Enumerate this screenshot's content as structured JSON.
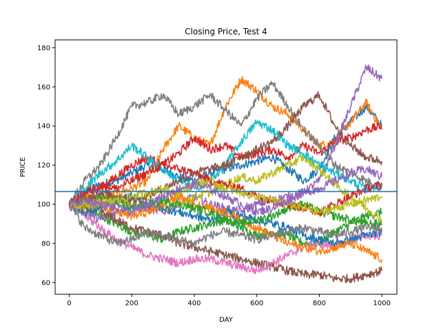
{
  "chart_data": {
    "type": "line",
    "title": "Closing Price, Test 4",
    "xlabel": "DAY",
    "ylabel": "PRICE",
    "xlim": [
      -45,
      1048
    ],
    "ylim": [
      54,
      184
    ],
    "xticks": [
      0,
      200,
      400,
      600,
      800,
      1000
    ],
    "yticks": [
      60,
      80,
      100,
      120,
      140,
      160,
      180
    ],
    "hline": {
      "y": 106.5,
      "color": "#1f77b4"
    },
    "grid": false,
    "legend": "none",
    "series": [
      {
        "color": "#1f77b4",
        "x": [
          0,
          50,
          100,
          150,
          200,
          250,
          300,
          350,
          400,
          450,
          500,
          550,
          600,
          650,
          700,
          750,
          800,
          850,
          900,
          950,
          1000
        ],
        "y": [
          100,
          106,
          110,
          112,
          116,
          120,
          118,
          114,
          112,
          116,
          118,
          120,
          122,
          124,
          118,
          112,
          118,
          134,
          142,
          150,
          140
        ]
      },
      {
        "color": "#ff7f0e",
        "x": [
          0,
          50,
          100,
          150,
          200,
          250,
          300,
          350,
          400,
          450,
          500,
          550,
          600,
          650,
          700,
          750,
          800,
          850,
          900,
          950,
          1000
        ],
        "y": [
          100,
          104,
          102,
          106,
          108,
          112,
          128,
          140,
          134,
          130,
          150,
          164,
          158,
          150,
          146,
          138,
          130,
          132,
          142,
          152,
          138
        ]
      },
      {
        "color": "#2ca02c",
        "x": [
          0,
          50,
          100,
          150,
          200,
          250,
          300,
          350,
          400,
          450,
          500,
          550,
          600,
          650,
          700,
          750,
          800,
          850,
          900,
          950,
          1000
        ],
        "y": [
          100,
          98,
          94,
          90,
          86,
          84,
          82,
          86,
          88,
          90,
          92,
          88,
          84,
          86,
          84,
          80,
          80,
          86,
          90,
          94,
          96
        ]
      },
      {
        "color": "#d62728",
        "x": [
          0,
          50,
          100,
          150,
          200,
          250,
          300,
          350,
          400,
          450,
          500,
          550,
          600,
          650,
          700,
          750,
          800,
          850,
          900,
          950,
          1000
        ],
        "y": [
          100,
          104,
          108,
          114,
          120,
          124,
          120,
          126,
          134,
          128,
          130,
          124,
          126,
          128,
          124,
          130,
          126,
          132,
          134,
          138,
          140
        ]
      },
      {
        "color": "#9467bd",
        "x": [
          0,
          50,
          100,
          150,
          200,
          250,
          300,
          350,
          400,
          450,
          500,
          550,
          600,
          650,
          700,
          750,
          800,
          850,
          900,
          950,
          1000
        ],
        "y": [
          100,
          96,
          92,
          96,
          100,
          98,
          96,
          100,
          104,
          100,
          98,
          96,
          100,
          102,
          104,
          106,
          112,
          130,
          150,
          170,
          164
        ]
      },
      {
        "color": "#8c564b",
        "x": [
          0,
          50,
          100,
          150,
          200,
          250,
          300,
          350,
          400,
          450,
          500,
          550,
          600,
          650,
          700,
          750,
          800,
          850,
          900,
          950,
          1000
        ],
        "y": [
          100,
          98,
          96,
          92,
          88,
          86,
          84,
          80,
          78,
          76,
          74,
          72,
          70,
          68,
          66,
          64,
          64,
          62,
          62,
          64,
          66
        ]
      },
      {
        "color": "#e377c2",
        "x": [
          0,
          50,
          100,
          150,
          200,
          250,
          300,
          350,
          400,
          450,
          500,
          550,
          600,
          650,
          700,
          750,
          800,
          850,
          900,
          950,
          1000
        ],
        "y": [
          100,
          94,
          88,
          82,
          78,
          74,
          72,
          70,
          72,
          72,
          70,
          68,
          66,
          70,
          74,
          78,
          80,
          78,
          82,
          84,
          84
        ]
      },
      {
        "color": "#7f7f7f",
        "x": [
          0,
          50,
          100,
          150,
          200,
          250,
          300,
          350,
          400,
          450,
          500,
          550,
          600,
          650,
          700,
          750,
          800,
          850,
          900,
          950,
          1000
        ],
        "y": [
          100,
          112,
          120,
          134,
          150,
          152,
          156,
          146,
          150,
          156,
          148,
          140,
          154,
          162,
          150,
          138,
          130,
          120,
          116,
          112,
          108
        ]
      },
      {
        "color": "#bcbd22",
        "x": [
          0,
          50,
          100,
          150,
          200,
          250,
          300,
          350,
          400,
          450,
          500,
          550,
          600,
          650,
          700,
          750,
          800,
          850,
          900,
          950,
          1000
        ],
        "y": [
          100,
          102,
          98,
          104,
          100,
          102,
          98,
          100,
          104,
          106,
          110,
          114,
          112,
          116,
          120,
          124,
          118,
          110,
          104,
          98,
          92
        ]
      },
      {
        "color": "#17becf",
        "x": [
          0,
          50,
          100,
          150,
          200,
          250,
          300,
          350,
          400,
          450,
          500,
          550,
          600,
          650,
          700,
          750,
          800,
          850,
          900,
          950,
          1000
        ],
        "y": [
          100,
          108,
          116,
          122,
          130,
          124,
          118,
          112,
          108,
          112,
          120,
          132,
          142,
          138,
          130,
          126,
          120,
          116,
          112,
          108,
          110
        ]
      },
      {
        "color": "#1f77b4",
        "x": [
          0,
          50,
          100,
          150,
          200,
          250,
          300,
          350,
          400,
          450,
          500,
          550,
          600,
          650,
          700,
          750,
          800,
          850,
          900,
          950,
          1000
        ],
        "y": [
          100,
          96,
          98,
          102,
          104,
          100,
          98,
          96,
          94,
          92,
          96,
          94,
          92,
          90,
          88,
          84,
          82,
          80,
          82,
          84,
          86
        ]
      },
      {
        "color": "#ff7f0e",
        "x": [
          0,
          50,
          100,
          150,
          200,
          250,
          300,
          350,
          400,
          450,
          500,
          550,
          600,
          650,
          700,
          750,
          800,
          850,
          900,
          950,
          1000
        ],
        "y": [
          100,
          104,
          100,
          96,
          94,
          96,
          100,
          104,
          100,
          98,
          96,
          92,
          88,
          84,
          80,
          78,
          76,
          78,
          80,
          76,
          72
        ]
      },
      {
        "color": "#2ca02c",
        "x": [
          0,
          50,
          100,
          150,
          200,
          250,
          300,
          350,
          400,
          450,
          500,
          550,
          600,
          650,
          700,
          750,
          800,
          850,
          900,
          950,
          1000
        ],
        "y": [
          100,
          102,
          104,
          100,
          98,
          100,
          102,
          100,
          98,
          96,
          92,
          90,
          92,
          94,
          98,
          100,
          96,
          94,
          92,
          90,
          90
        ]
      },
      {
        "color": "#d62728",
        "x": [
          0,
          50,
          100,
          150,
          200,
          250,
          300,
          350,
          400,
          450,
          500,
          550,
          600,
          650,
          700,
          750,
          800,
          850,
          900,
          950,
          1000
        ],
        "y": [
          100,
          106,
          110,
          108,
          112,
          116,
          120,
          118,
          116,
          112,
          110,
          108,
          104,
          102,
          100,
          98,
          96,
          100,
          104,
          108,
          110
        ]
      },
      {
        "color": "#8c564b",
        "x": [
          0,
          50,
          100,
          150,
          200,
          250,
          300,
          350,
          400,
          450,
          500,
          550,
          600,
          650,
          700,
          750,
          800,
          850,
          900,
          950,
          1000
        ],
        "y": [
          100,
          102,
          106,
          104,
          102,
          104,
          108,
          112,
          116,
          118,
          120,
          124,
          128,
          132,
          140,
          150,
          156,
          140,
          130,
          124,
          122
        ]
      },
      {
        "color": "#7f7f7f",
        "x": [
          0,
          50,
          100,
          150,
          200,
          250,
          300,
          350,
          400,
          450,
          500,
          550,
          600,
          650,
          700,
          750,
          800,
          850,
          900,
          950,
          1000
        ],
        "y": [
          100,
          88,
          84,
          80,
          82,
          86,
          84,
          82,
          80,
          84,
          86,
          84,
          82,
          84,
          86,
          88,
          86,
          84,
          86,
          88,
          88
        ]
      },
      {
        "color": "#bcbd22",
        "x": [
          0,
          50,
          100,
          150,
          200,
          250,
          300,
          350,
          400,
          450,
          500,
          550,
          600,
          650,
          700,
          750,
          800,
          850,
          900,
          950,
          1000
        ],
        "y": [
          100,
          98,
          100,
          102,
          104,
          106,
          108,
          106,
          110,
          112,
          108,
          106,
          104,
          102,
          100,
          98,
          96,
          98,
          100,
          102,
          104
        ]
      },
      {
        "color": "#9467bd",
        "x": [
          0,
          50,
          100,
          150,
          200,
          250,
          300,
          350,
          400,
          450,
          500,
          550,
          600,
          650,
          700,
          750,
          800,
          850,
          900,
          950,
          1000
        ],
        "y": [
          100,
          102,
          100,
          98,
          96,
          100,
          104,
          108,
          110,
          108,
          104,
          100,
          96,
          98,
          102,
          106,
          108,
          112,
          116,
          118,
          114
        ]
      }
    ]
  }
}
